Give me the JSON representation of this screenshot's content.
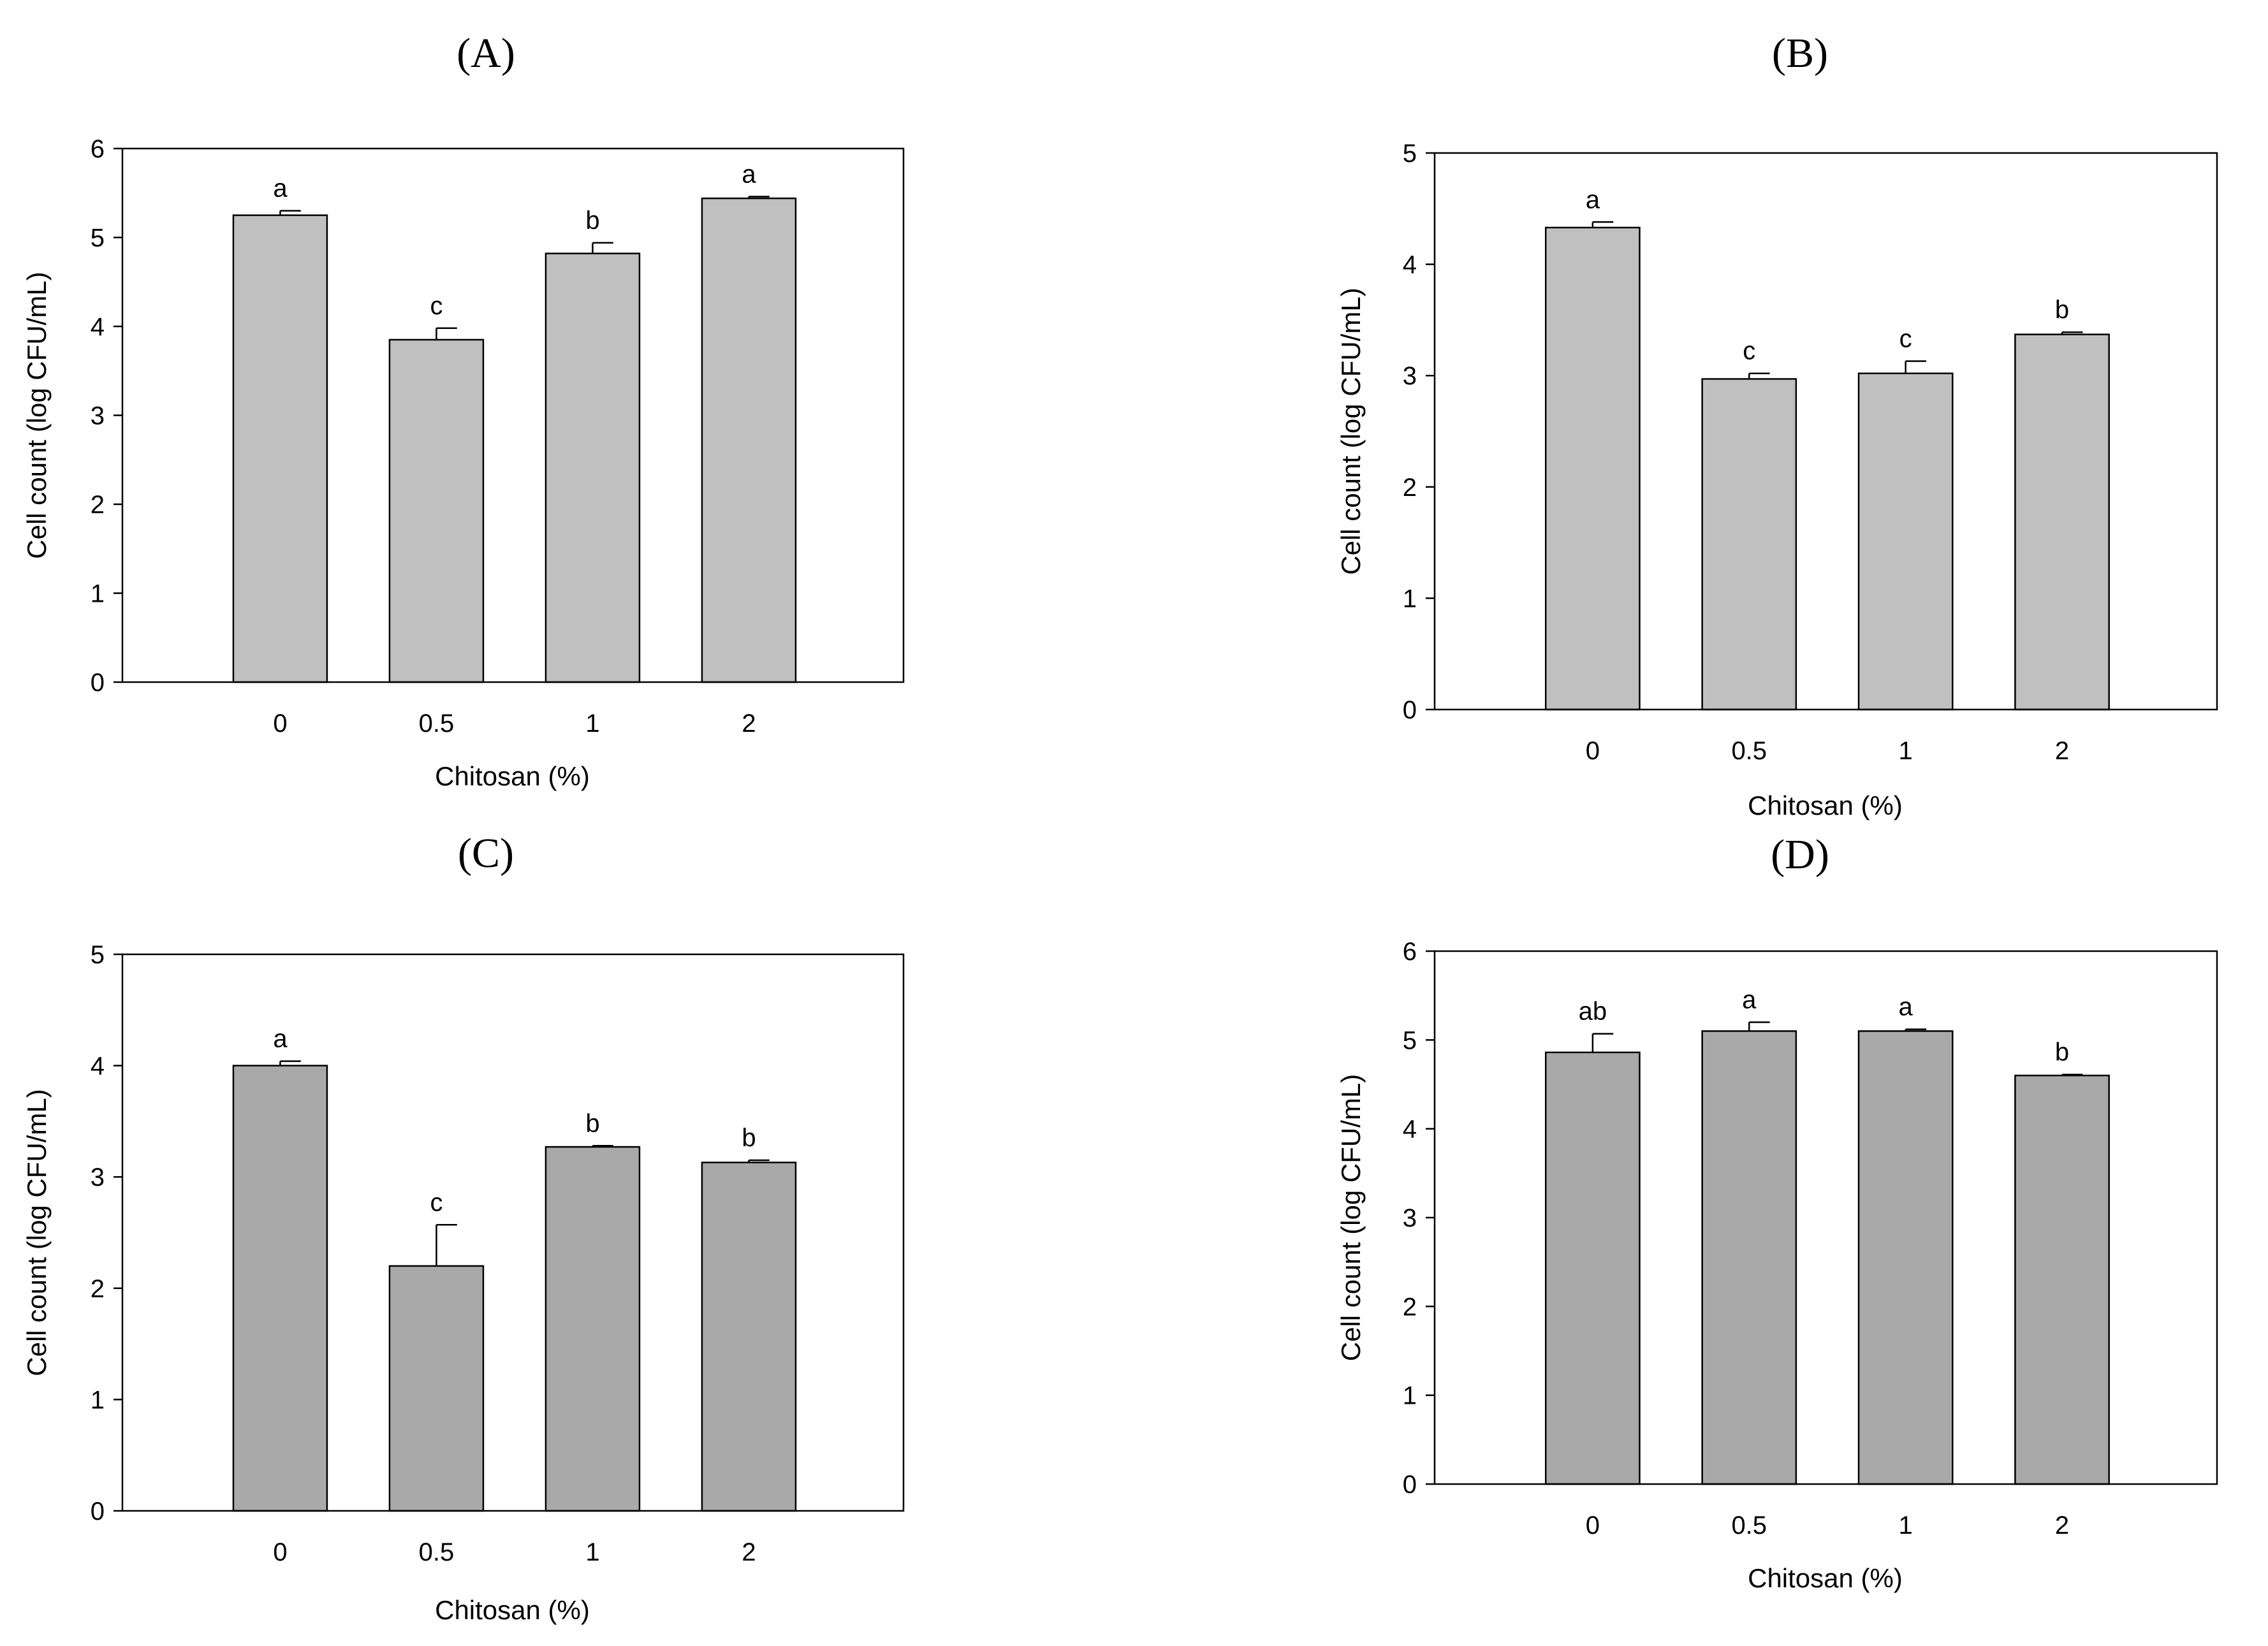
{
  "figure": {
    "colors": {
      "bar_light": "#c0c0c0",
      "bar_dark": "#a9a9a9",
      "axis": "#000000",
      "background": "#ffffff"
    }
  },
  "chart_data": [
    {
      "id": "A",
      "type": "bar",
      "title": "(A)",
      "xlabel": "Chitosan (%)",
      "ylabel": "Cell count (log CFU/mL)",
      "categories": [
        "0",
        "0.5",
        "1",
        "2"
      ],
      "values": [
        5.25,
        3.85,
        4.82,
        5.44
      ],
      "errors": [
        0.05,
        0.13,
        0.12,
        0.02
      ],
      "significance": [
        "a",
        "c",
        "b",
        "a"
      ],
      "ylim": [
        0,
        6
      ],
      "yticks": [
        0,
        1,
        2,
        3,
        4,
        5,
        6
      ],
      "bar_color": "#c0c0c0"
    },
    {
      "id": "B",
      "type": "bar",
      "title": "(B)",
      "xlabel": "Chitosan (%)",
      "ylabel": "Cell count (log CFU/mL)",
      "categories": [
        "0",
        "0.5",
        "1",
        "2"
      ],
      "values": [
        4.33,
        2.97,
        3.02,
        3.37
      ],
      "errors": [
        0.05,
        0.05,
        0.11,
        0.02
      ],
      "significance": [
        "a",
        "c",
        "c",
        "b"
      ],
      "ylim": [
        0,
        5
      ],
      "yticks": [
        0,
        1,
        2,
        3,
        4,
        5
      ],
      "bar_color": "#c0c0c0"
    },
    {
      "id": "C",
      "type": "bar",
      "title": "(C)",
      "xlabel": "Chitosan (%)",
      "ylabel": "Cell count (log CFU/mL)",
      "categories": [
        "0",
        "0.5",
        "1",
        "2"
      ],
      "values": [
        4.0,
        2.2,
        3.27,
        3.13
      ],
      "errors": [
        0.04,
        0.37,
        0.01,
        0.02
      ],
      "significance": [
        "a",
        "c",
        "b",
        "b"
      ],
      "ylim": [
        0,
        5
      ],
      "yticks": [
        0,
        1,
        2,
        3,
        4,
        5
      ],
      "bar_color": "#a9a9a9"
    },
    {
      "id": "D",
      "type": "bar",
      "title": "(D)",
      "xlabel": "Chitosan (%)",
      "ylabel": "Cell count (log CFU/mL)",
      "categories": [
        "0",
        "0.5",
        "1",
        "2"
      ],
      "values": [
        4.86,
        5.1,
        5.1,
        4.6
      ],
      "errors": [
        0.21,
        0.1,
        0.02,
        0.01
      ],
      "significance": [
        "ab",
        "a",
        "a",
        "b"
      ],
      "ylim": [
        0,
        6
      ],
      "yticks": [
        0,
        1,
        2,
        3,
        4,
        5,
        6
      ],
      "bar_color": "#a9a9a9"
    }
  ]
}
